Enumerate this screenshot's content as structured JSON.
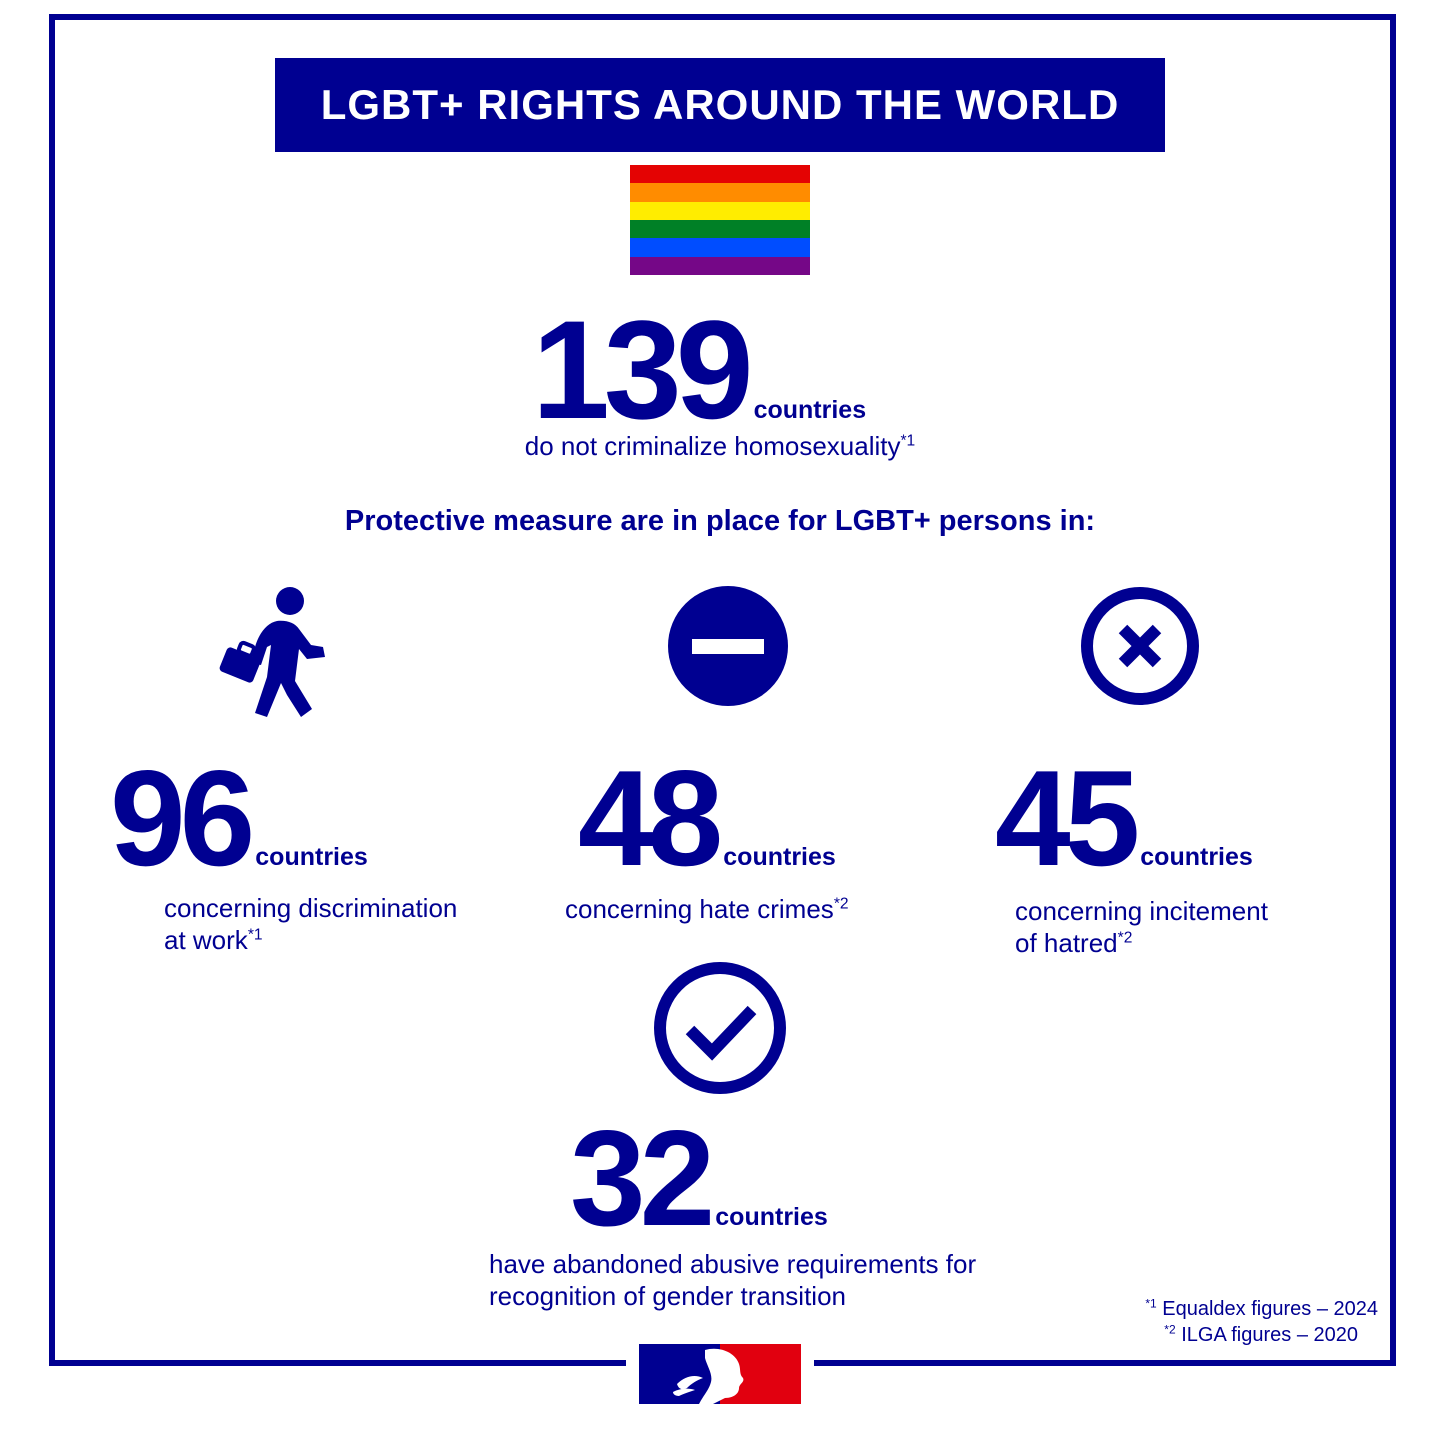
{
  "title": "LGBT+ RIGHTS AROUND THE WORLD",
  "flag_colors": [
    "#e40303",
    "#ff8c00",
    "#ffed00",
    "#008026",
    "#004dff",
    "#750787"
  ],
  "headline": {
    "number": "139",
    "unit": "countries",
    "description": "do not criminalize homosexuality",
    "footnote_mark": "*1"
  },
  "protective_heading": "Protective measure are in place for LGBT+ persons in:",
  "stats": [
    {
      "icon": "walking-businessperson-icon",
      "number": "96",
      "unit": "countries",
      "description_line1": "concerning discrimination",
      "description_line2": "at work",
      "footnote_mark": "*1"
    },
    {
      "icon": "no-entry-icon",
      "number": "48",
      "unit": "countries",
      "description_line1": "concerning hate crimes",
      "description_line2": "",
      "footnote_mark": "*2"
    },
    {
      "icon": "circle-x-icon",
      "number": "45",
      "unit": "countries",
      "description_line1": "concerning incitement",
      "description_line2": "of hatred",
      "footnote_mark": "*2"
    },
    {
      "icon": "circle-check-icon",
      "number": "32",
      "unit": "countries",
      "description_line1": "have abandoned abusive requirements for",
      "description_line2": "recognition of gender transition",
      "footnote_mark": ""
    }
  ],
  "footnotes": [
    {
      "mark": "*1",
      "text": "Equaldex figures – 2024"
    },
    {
      "mark": "*2",
      "text": "ILGA figures – 2020"
    }
  ],
  "colors": {
    "primary": "#000091",
    "red": "#e1000f"
  }
}
